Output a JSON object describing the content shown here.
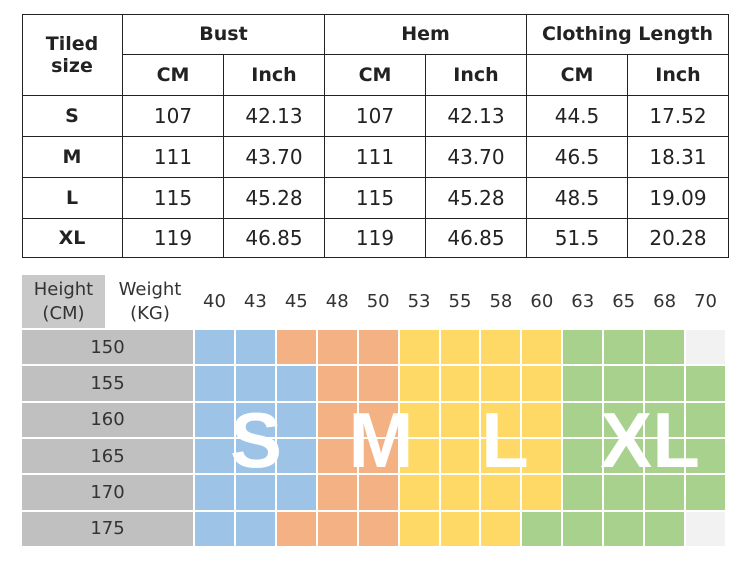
{
  "size_table": {
    "corner": "Tiled size",
    "groups": [
      "Bust",
      "Hem",
      "Clothing Length"
    ],
    "units": [
      "CM",
      "Inch",
      "CM",
      "Inch",
      "CM",
      "Inch"
    ],
    "rows": [
      [
        "S",
        "107",
        "42.13",
        "107",
        "42.13",
        "44.5",
        "17.52"
      ],
      [
        "M",
        "111",
        "43.70",
        "111",
        "43.70",
        "46.5",
        "18.31"
      ],
      [
        "L",
        "115",
        "45.28",
        "115",
        "45.28",
        "48.5",
        "19.09"
      ],
      [
        "XL",
        "119",
        "46.85",
        "119",
        "46.85",
        "51.5",
        "20.28"
      ]
    ]
  },
  "weight_chart": {
    "height_header": [
      "Height",
      "(CM)"
    ],
    "weight_header": [
      "Weight",
      "(KG)"
    ],
    "weights": [
      "40",
      "43",
      "45",
      "48",
      "50",
      "53",
      "55",
      "58",
      "60",
      "63",
      "65",
      "68",
      "70"
    ],
    "heights": [
      "150",
      "155",
      "160",
      "165",
      "170",
      "175"
    ],
    "colors": [
      [
        "#9dc3e6",
        "#9dc3e6",
        "#f4b183",
        "#f4b183",
        "#f4b183",
        "#ffd966",
        "#ffd966",
        "#ffd966",
        "#ffd966",
        "#a9d18e",
        "#a9d18e",
        "#a9d18e",
        "#f2f2f2"
      ],
      [
        "#9dc3e6",
        "#9dc3e6",
        "#9dc3e6",
        "#f4b183",
        "#f4b183",
        "#ffd966",
        "#ffd966",
        "#ffd966",
        "#ffd966",
        "#a9d18e",
        "#a9d18e",
        "#a9d18e",
        "#a9d18e"
      ],
      [
        "#9dc3e6",
        "#9dc3e6",
        "#9dc3e6",
        "#f4b183",
        "#f4b183",
        "#ffd966",
        "#ffd966",
        "#ffd966",
        "#ffd966",
        "#a9d18e",
        "#a9d18e",
        "#a9d18e",
        "#a9d18e"
      ],
      [
        "#9dc3e6",
        "#9dc3e6",
        "#9dc3e6",
        "#f4b183",
        "#f4b183",
        "#ffd966",
        "#ffd966",
        "#ffd966",
        "#ffd966",
        "#a9d18e",
        "#a9d18e",
        "#a9d18e",
        "#a9d18e"
      ],
      [
        "#9dc3e6",
        "#9dc3e6",
        "#9dc3e6",
        "#f4b183",
        "#f4b183",
        "#ffd966",
        "#ffd966",
        "#ffd966",
        "#ffd966",
        "#a9d18e",
        "#a9d18e",
        "#a9d18e",
        "#a9d18e"
      ],
      [
        "#9dc3e6",
        "#9dc3e6",
        "#f4b183",
        "#f4b183",
        "#f4b183",
        "#ffd966",
        "#ffd966",
        "#ffd966",
        "#a9d18e",
        "#a9d18e",
        "#a9d18e",
        "#a9d18e",
        "#f2f2f2"
      ]
    ],
    "size_labels": [
      "S",
      "M",
      "L",
      "XL"
    ]
  }
}
